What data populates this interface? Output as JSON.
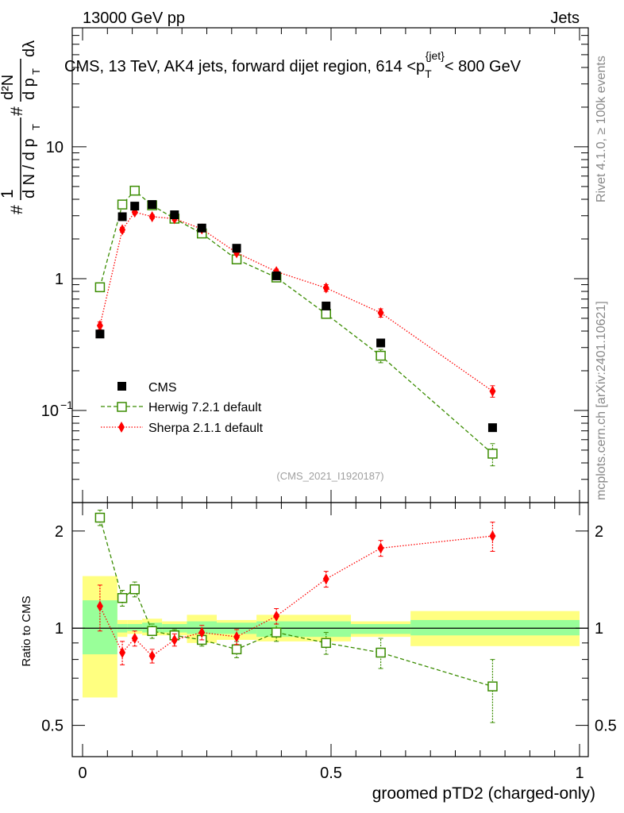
{
  "header": {
    "energy_label": "13000 GeV pp",
    "category_label": "Jets"
  },
  "side": {
    "rivet_label": "Rivet 4.1.0, ≥ 100k events",
    "source_label": "mcplots.cern.ch [arXiv:2401.10621]"
  },
  "colors": {
    "cms": "#000000",
    "herwig": "#3a8c00",
    "sherpa": "#ff0000",
    "band_inner": "#99ff99",
    "band_outer": "#ffff80"
  },
  "chart_data": [
    {
      "type": "scatter",
      "panel": "main",
      "title": "CMS, 13 TeV, AK4 jets, forward dijet region, 614 <p_T^{jet}< 800 GeV",
      "title_parts": {
        "prefix": "CMS, 13 TeV, AK4 jets, forward dijet region, 614 <p",
        "sub": "T",
        "sup": "{jet}",
        "suffix": "< 800 GeV"
      },
      "ylabel_parts": {
        "hash": "#",
        "one": "1",
        "dn": "d N / d p",
        "t": "T",
        "d2n": "d²N",
        "dp": "d p",
        "dlambda": "dλ"
      },
      "watermark": "(CMS_2021_I1920187)",
      "yscale": "log",
      "ylim": [
        0.02,
        80
      ],
      "xlim": [
        0,
        1
      ],
      "y_ticks": [
        {
          "value": 0.1,
          "label": "10",
          "exp": "−1"
        },
        {
          "value": 1,
          "label": "1",
          "exp": ""
        },
        {
          "value": 10,
          "label": "10",
          "exp": ""
        }
      ],
      "legend": {
        "position": "bottom-left",
        "entries": [
          {
            "key": "cms",
            "label": "CMS"
          },
          {
            "key": "herwig",
            "label": "Herwig 7.2.1 default"
          },
          {
            "key": "sherpa",
            "label": "Sherpa 2.1.1 default"
          }
        ]
      },
      "x": [
        0.035,
        0.08,
        0.105,
        0.14,
        0.185,
        0.24,
        0.31,
        0.39,
        0.49,
        0.6,
        0.825
      ],
      "series": [
        {
          "name": "CMS",
          "key": "cms",
          "marker": "square-filled",
          "values": [
            0.38,
            2.95,
            3.55,
            3.65,
            3.05,
            2.42,
            1.7,
            1.05,
            0.62,
            0.325,
            0.074
          ]
        },
        {
          "name": "Herwig 7.2.1 default",
          "key": "herwig",
          "marker": "square-open",
          "line": "dashed",
          "values": [
            0.86,
            3.65,
            4.65,
            3.6,
            2.85,
            2.2,
            1.4,
            1.02,
            0.54,
            0.26,
            0.047
          ],
          "errors": [
            0.03,
            0.12,
            0.15,
            0.12,
            0.1,
            0.07,
            0.05,
            0.05,
            0.04,
            0.03,
            0.009
          ]
        },
        {
          "name": "Sherpa 2.1.1 default",
          "key": "sherpa",
          "marker": "diamond-filled",
          "line": "dotted",
          "values": [
            0.44,
            2.35,
            3.2,
            2.95,
            2.85,
            2.38,
            1.57,
            1.13,
            0.85,
            0.55,
            0.14
          ],
          "errors": [
            0.03,
            0.1,
            0.12,
            0.1,
            0.1,
            0.08,
            0.06,
            0.05,
            0.05,
            0.04,
            0.014
          ]
        }
      ]
    },
    {
      "type": "scatter",
      "panel": "ratio",
      "ylabel": "Ratio to CMS",
      "xlabel": "groomed pTD2 (charged-only)",
      "yscale": "log",
      "ylim": [
        0.4,
        2.45
      ],
      "xlim": [
        0,
        1
      ],
      "y_ticks": [
        {
          "value": 0.5,
          "label": "0.5"
        },
        {
          "value": 1,
          "label": "1"
        },
        {
          "value": 2,
          "label": "2"
        }
      ],
      "x_ticks": [
        {
          "value": 0,
          "label": "0"
        },
        {
          "value": 0.5,
          "label": "0.5"
        },
        {
          "value": 1,
          "label": "1"
        }
      ],
      "bands": [
        {
          "x0": 0.0,
          "x1": 0.07,
          "inner": [
            0.83,
            1.22
          ],
          "outer": [
            0.61,
            1.45
          ]
        },
        {
          "x0": 0.07,
          "x1": 0.09,
          "inner": [
            0.97,
            1.03
          ],
          "outer": [
            0.94,
            1.06
          ]
        },
        {
          "x0": 0.09,
          "x1": 0.12,
          "inner": [
            0.98,
            1.03
          ],
          "outer": [
            0.96,
            1.06
          ]
        },
        {
          "x0": 0.12,
          "x1": 0.16,
          "inner": [
            0.97,
            1.04
          ],
          "outer": [
            0.95,
            1.07
          ]
        },
        {
          "x0": 0.16,
          "x1": 0.21,
          "inner": [
            0.97,
            1.03
          ],
          "outer": [
            0.95,
            1.05
          ]
        },
        {
          "x0": 0.21,
          "x1": 0.27,
          "inner": [
            0.96,
            1.05
          ],
          "outer": [
            0.9,
            1.1
          ]
        },
        {
          "x0": 0.27,
          "x1": 0.35,
          "inner": [
            0.96,
            1.04
          ],
          "outer": [
            0.92,
            1.06
          ]
        },
        {
          "x0": 0.35,
          "x1": 0.54,
          "inner": [
            0.94,
            1.05
          ],
          "outer": [
            0.91,
            1.1
          ]
        },
        {
          "x0": 0.54,
          "x1": 0.66,
          "inner": [
            0.96,
            1.03
          ],
          "outer": [
            0.94,
            1.05
          ]
        },
        {
          "x0": 0.66,
          "x1": 1.0,
          "inner": [
            0.95,
            1.06
          ],
          "outer": [
            0.88,
            1.13
          ]
        }
      ],
      "x": [
        0.035,
        0.08,
        0.105,
        0.14,
        0.185,
        0.24,
        0.31,
        0.39,
        0.49,
        0.6,
        0.825
      ],
      "series": [
        {
          "name": "Herwig 7.2.1 default",
          "key": "herwig",
          "marker": "square-open",
          "line": "dashed",
          "values": [
            2.2,
            1.24,
            1.32,
            0.98,
            0.95,
            0.92,
            0.86,
            0.97,
            0.9,
            0.84,
            0.66
          ],
          "err_lo": [
            0.12,
            0.07,
            0.07,
            0.05,
            0.04,
            0.04,
            0.05,
            0.06,
            0.07,
            0.09,
            0.15
          ],
          "err_hi": [
            0.12,
            0.07,
            0.07,
            0.05,
            0.04,
            0.04,
            0.05,
            0.06,
            0.07,
            0.09,
            0.14
          ]
        },
        {
          "name": "Sherpa 2.1.1 default",
          "key": "sherpa",
          "marker": "diamond-filled",
          "line": "dotted",
          "values": [
            1.17,
            0.84,
            0.93,
            0.82,
            0.92,
            0.97,
            0.94,
            1.09,
            1.42,
            1.77,
            1.93
          ],
          "err_lo": [
            0.19,
            0.07,
            0.05,
            0.04,
            0.04,
            0.05,
            0.05,
            0.06,
            0.08,
            0.1,
            0.2
          ],
          "err_hi": [
            0.19,
            0.07,
            0.05,
            0.04,
            0.04,
            0.05,
            0.05,
            0.06,
            0.08,
            0.1,
            0.2
          ]
        }
      ]
    }
  ]
}
